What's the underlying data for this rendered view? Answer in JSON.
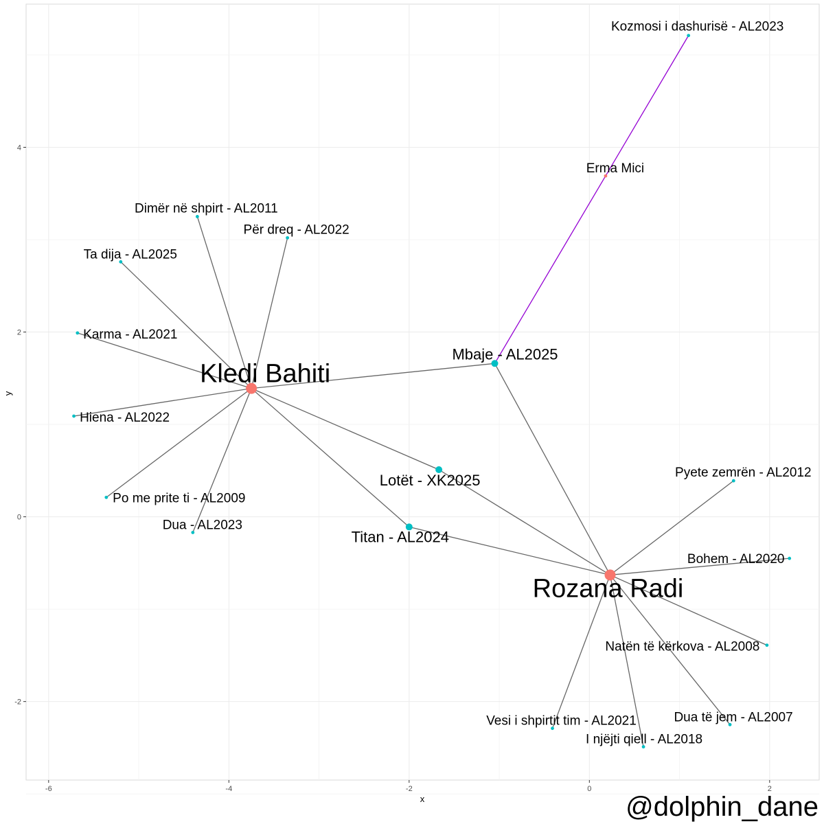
{
  "chart_data": {
    "type": "scatter",
    "subtype": "network graph",
    "xlabel": "x",
    "ylabel": "y",
    "xlim": [
      -6.25,
      2.55
    ],
    "ylim": [
      -2.85,
      5.55
    ],
    "x_ticks": [
      -6,
      -4,
      -2,
      0,
      2
    ],
    "y_ticks": [
      -2,
      0,
      2,
      4
    ],
    "x_tick_labels": [
      "-6",
      "-4",
      "-2",
      "0",
      "2"
    ],
    "y_tick_labels": [
      "-2",
      "0",
      "2",
      "4"
    ],
    "grid": true,
    "legend": "none",
    "colors": {
      "artist": "#F8766D",
      "song": "#00BFC4",
      "edge": "#666666",
      "highlight_edge": "#9400D3",
      "grid": "#ebebeb"
    },
    "nodes": [
      {
        "id": "kledi",
        "label": "Kledi Bahiti",
        "type": "artist",
        "x": -3.75,
        "y": 1.39,
        "size": "large"
      },
      {
        "id": "rozana",
        "label": "Rozana Radi",
        "type": "artist",
        "x": 0.23,
        "y": -0.63,
        "size": "large"
      },
      {
        "id": "erma",
        "label": "Erma Mici",
        "type": "artist",
        "x": 0.18,
        "y": 3.69,
        "size": "small"
      },
      {
        "id": "mbaje",
        "label": "Mbaje - AL2025",
        "type": "song",
        "x": -1.05,
        "y": 1.66,
        "size": "medium"
      },
      {
        "id": "lotet",
        "label": "Lotët - XK2025",
        "type": "song",
        "x": -1.67,
        "y": 0.51,
        "size": "medium"
      },
      {
        "id": "titan",
        "label": "Titan - AL2024",
        "type": "song",
        "x": -2.0,
        "y": -0.11,
        "size": "medium"
      },
      {
        "id": "kozmosi",
        "label": "Kozmosi i dashurisë - AL2023",
        "type": "song",
        "x": 1.1,
        "y": 5.21,
        "size": "small"
      },
      {
        "id": "dimer",
        "label": "Dimër në shpirt - AL2011",
        "type": "song",
        "x": -4.35,
        "y": 3.25,
        "size": "small"
      },
      {
        "id": "perdreq",
        "label": "Për dreq - AL2022",
        "type": "song",
        "x": -3.35,
        "y": 3.02,
        "size": "small"
      },
      {
        "id": "tadija",
        "label": "Ta dija - AL2025",
        "type": "song",
        "x": -5.2,
        "y": 2.76,
        "size": "small"
      },
      {
        "id": "karma",
        "label": "Karma - AL2021",
        "type": "song",
        "x": -5.68,
        "y": 1.99,
        "size": "small"
      },
      {
        "id": "hiena",
        "label": "Hiena - AL2022",
        "type": "song",
        "x": -5.72,
        "y": 1.09,
        "size": "small"
      },
      {
        "id": "pome",
        "label": "Po me prite ti - AL2009",
        "type": "song",
        "x": -5.36,
        "y": 0.21,
        "size": "small"
      },
      {
        "id": "dua",
        "label": "Dua - AL2023",
        "type": "song",
        "x": -4.4,
        "y": -0.17,
        "size": "small"
      },
      {
        "id": "pyete",
        "label": "Pyete zemrën - AL2012",
        "type": "song",
        "x": 1.6,
        "y": 0.39,
        "size": "small"
      },
      {
        "id": "bohem",
        "label": "Bohem - AL2020",
        "type": "song",
        "x": 2.22,
        "y": -0.45,
        "size": "small"
      },
      {
        "id": "naten",
        "label": "Natën të kërkova - AL2008",
        "type": "song",
        "x": 1.97,
        "y": -1.39,
        "size": "small"
      },
      {
        "id": "duatejem",
        "label": "Dua të jem - AL2007",
        "type": "song",
        "x": 1.56,
        "y": -2.25,
        "size": "small"
      },
      {
        "id": "njejti",
        "label": "I njëjti qiell - AL2018",
        "type": "song",
        "x": 0.6,
        "y": -2.49,
        "size": "small"
      },
      {
        "id": "vesi",
        "label": "Vesi i shpirtit tim - AL2021",
        "type": "song",
        "x": -0.41,
        "y": -2.29,
        "size": "small"
      }
    ],
    "edges": [
      {
        "from": "kledi",
        "to": "dimer"
      },
      {
        "from": "kledi",
        "to": "perdreq"
      },
      {
        "from": "kledi",
        "to": "tadija"
      },
      {
        "from": "kledi",
        "to": "karma"
      },
      {
        "from": "kledi",
        "to": "hiena"
      },
      {
        "from": "kledi",
        "to": "pome"
      },
      {
        "from": "kledi",
        "to": "dua"
      },
      {
        "from": "kledi",
        "to": "mbaje"
      },
      {
        "from": "kledi",
        "to": "lotet"
      },
      {
        "from": "kledi",
        "to": "titan"
      },
      {
        "from": "rozana",
        "to": "mbaje"
      },
      {
        "from": "rozana",
        "to": "lotet"
      },
      {
        "from": "rozana",
        "to": "titan"
      },
      {
        "from": "rozana",
        "to": "pyete"
      },
      {
        "from": "rozana",
        "to": "bohem"
      },
      {
        "from": "rozana",
        "to": "naten"
      },
      {
        "from": "rozana",
        "to": "duatejem"
      },
      {
        "from": "rozana",
        "to": "njejti"
      },
      {
        "from": "rozana",
        "to": "vesi"
      },
      {
        "from": "erma",
        "to": "mbaje",
        "highlight": true
      },
      {
        "from": "erma",
        "to": "kozmosi",
        "highlight": true
      }
    ],
    "watermark": "@dolphin_dane"
  }
}
